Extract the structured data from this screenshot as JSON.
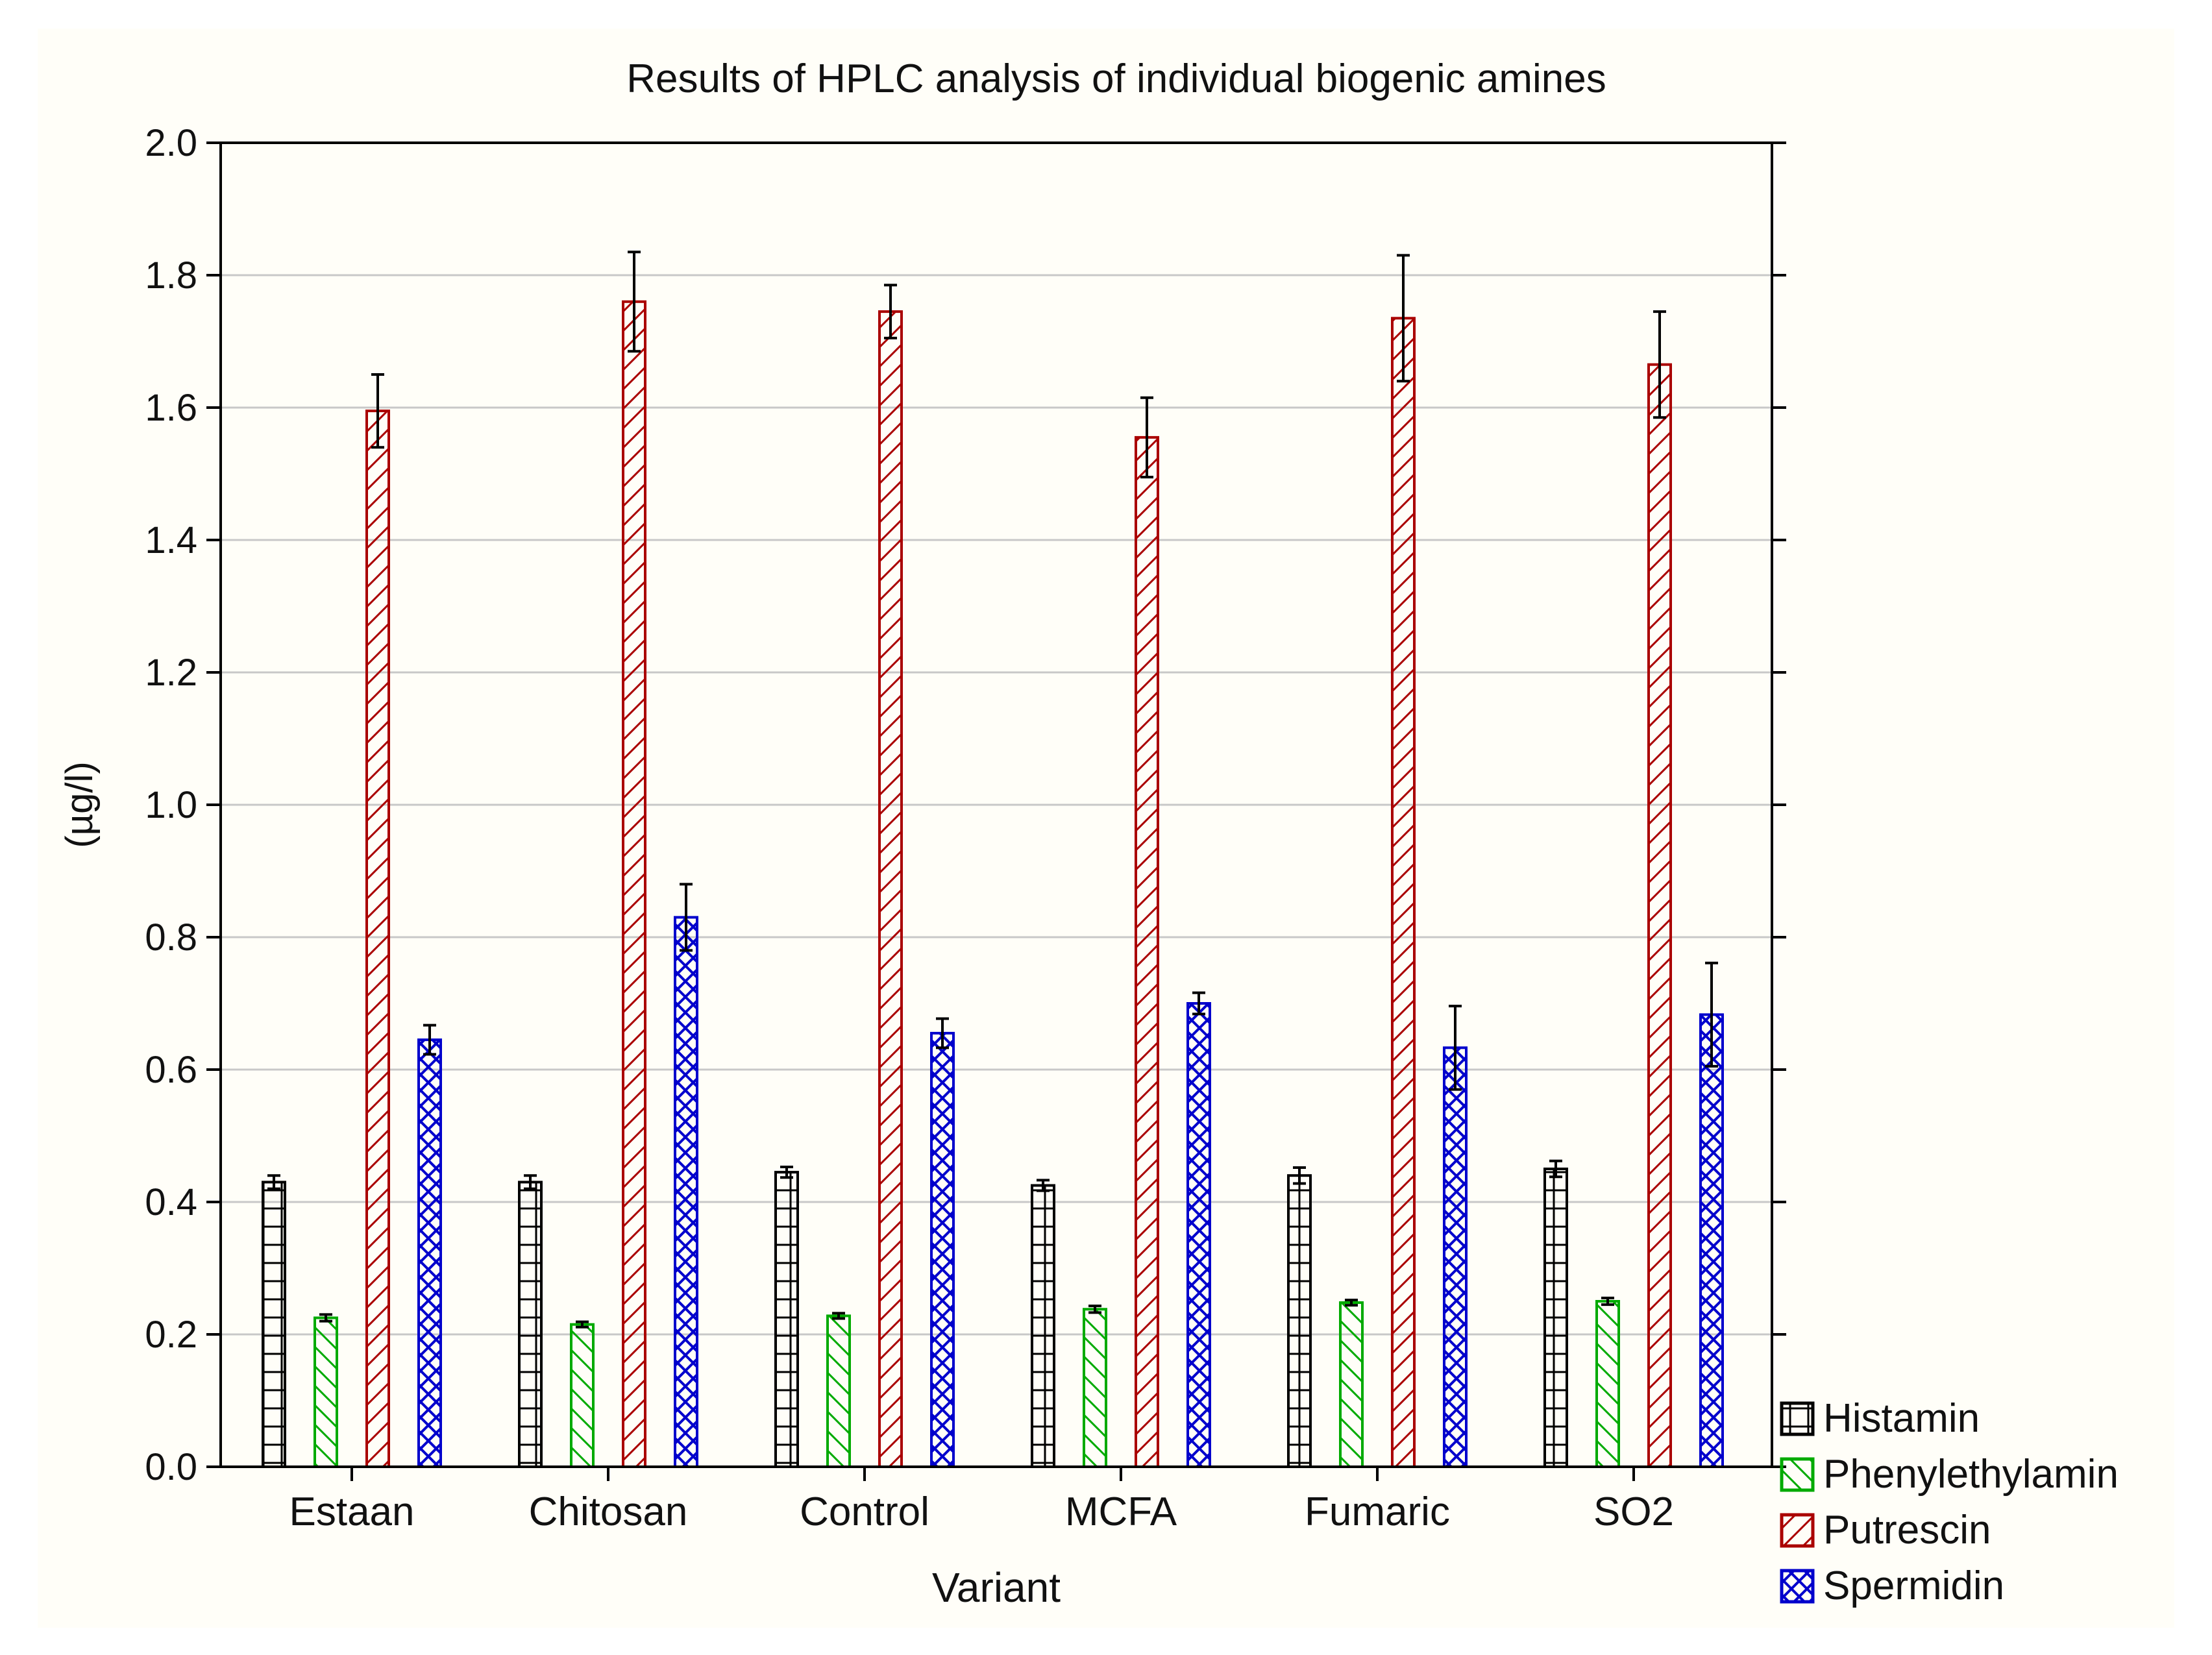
{
  "chart_data": {
    "type": "bar",
    "title": "Results of HPLC analysis of individual biogenic amines",
    "xlabel": "Variant",
    "ylabel": "(µg/l)",
    "ylim": [
      0,
      2.0
    ],
    "yticks": [
      "0.0",
      "0.2",
      "0.4",
      "0.6",
      "0.8",
      "1.0",
      "1.2",
      "1.4",
      "1.6",
      "1.8",
      "2.0"
    ],
    "grid": true,
    "legend_position": "bottom-right outside",
    "categories": [
      "Estaan",
      "Chitosan",
      "Control",
      "MCFA",
      "Fumaric",
      "SO2"
    ],
    "series": [
      {
        "name": "Histamin",
        "color": "#000000",
        "pattern": "grid",
        "values": [
          0.43,
          0.43,
          0.445,
          0.425,
          0.44,
          0.45
        ],
        "errors": [
          0.01,
          0.01,
          0.008,
          0.008,
          0.012,
          0.012
        ]
      },
      {
        "name": "Phenylethylamin",
        "color": "#00aa00",
        "pattern": "diagonal-down",
        "values": [
          0.225,
          0.215,
          0.228,
          0.238,
          0.248,
          0.25
        ],
        "errors": [
          0.005,
          0.004,
          0.004,
          0.005,
          0.004,
          0.005
        ]
      },
      {
        "name": "Putrescin",
        "color": "#aa0000",
        "pattern": "diagonal-up",
        "values": [
          1.595,
          1.76,
          1.745,
          1.555,
          1.735,
          1.665
        ],
        "errors": [
          0.055,
          0.075,
          0.04,
          0.06,
          0.095,
          0.08
        ]
      },
      {
        "name": "Spermidin",
        "color": "#0000cc",
        "pattern": "crosshatch",
        "values": [
          0.645,
          0.83,
          0.655,
          0.7,
          0.633,
          0.683
        ],
        "errors": [
          0.022,
          0.05,
          0.022,
          0.016,
          0.063,
          0.078
        ]
      }
    ]
  }
}
